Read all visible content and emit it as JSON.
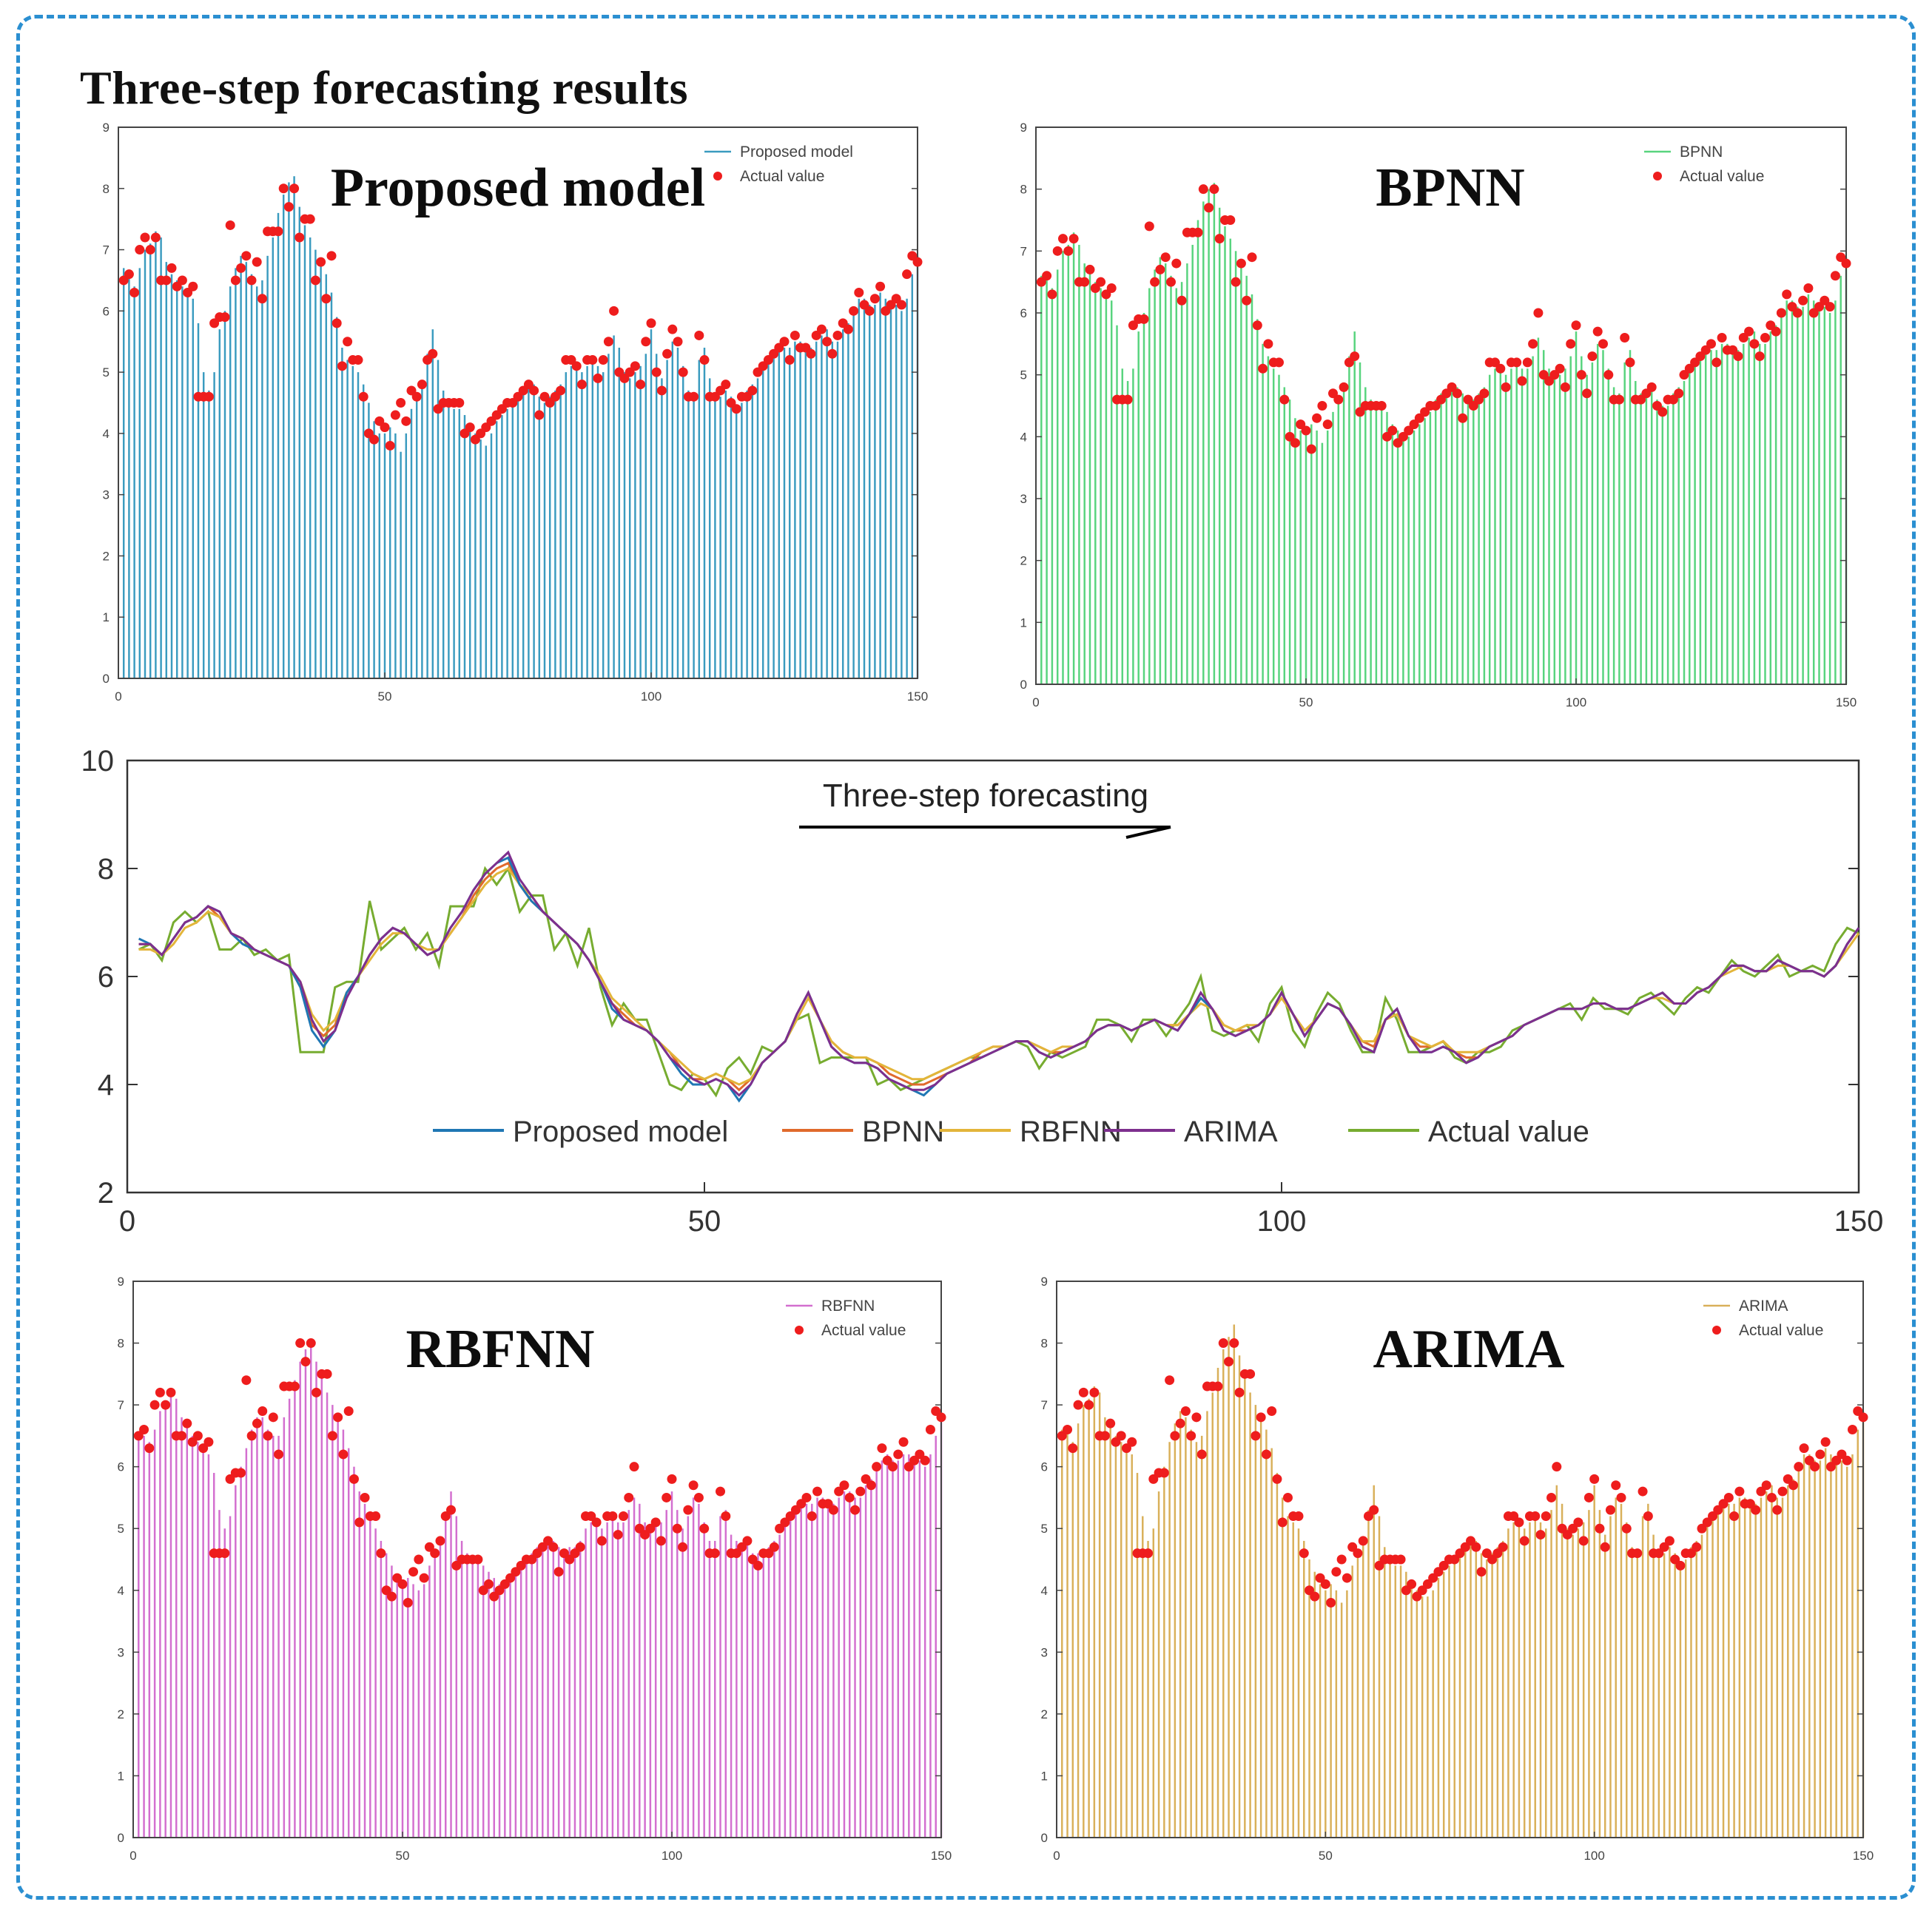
{
  "page": {
    "title": "Three-step forecasting results"
  },
  "colors": {
    "proposed": "#3a9bbf",
    "bpnn_bar": "#58d47e",
    "rbfnn_bar": "#d36fcf",
    "arima_bar": "#d9b05a",
    "actual_marker": "#ee1d1d",
    "line_proposed": "#1f77b4",
    "line_bpnn": "#e06a2c",
    "line_rbfnn": "#e3b53a",
    "line_arima": "#7e2f8e",
    "line_actual": "#77ac30",
    "frame": "#2b8fd1"
  },
  "chart_data": [
    {
      "id": "proposed",
      "type": "bar",
      "overlay_label": "Proposed model",
      "legend": [
        "Proposed model",
        "Actual value"
      ],
      "xlim": [
        0,
        150
      ],
      "ylim": [
        0,
        9
      ],
      "xticks": [
        "0",
        "50",
        "100",
        "150"
      ],
      "yticks": [
        "0",
        "1",
        "2",
        "3",
        "4",
        "5",
        "6",
        "7",
        "8",
        "9"
      ],
      "series": [
        {
          "name": "Proposed model",
          "style": "bars",
          "source": "proposed"
        },
        {
          "name": "Actual value",
          "style": "markers",
          "source": "actual"
        }
      ]
    },
    {
      "id": "bpnn",
      "type": "bar",
      "overlay_label": "BPNN",
      "legend": [
        "BPNN",
        "Actual value"
      ],
      "xlim": [
        0,
        150
      ],
      "ylim": [
        0,
        9
      ],
      "xticks": [
        "0",
        "50",
        "100",
        "150"
      ],
      "yticks": [
        "0",
        "1",
        "2",
        "3",
        "4",
        "5",
        "6",
        "7",
        "8",
        "9"
      ],
      "series": [
        {
          "name": "BPNN",
          "style": "bars",
          "source": "bpnn"
        },
        {
          "name": "Actual value",
          "style": "markers",
          "source": "actual"
        }
      ]
    },
    {
      "id": "lines",
      "type": "line",
      "title": "Three-step forecasting",
      "xlim": [
        0,
        150
      ],
      "ylim": [
        2,
        10
      ],
      "xticks": [
        "0",
        "50",
        "100",
        "150"
      ],
      "yticks": [
        "2",
        "4",
        "6",
        "8",
        "10"
      ],
      "legend": [
        "Proposed model",
        "BPNN",
        "RBFNN",
        "ARIMA",
        "Actual value"
      ],
      "series": [
        {
          "name": "Proposed model",
          "source": "proposed"
        },
        {
          "name": "BPNN",
          "source": "bpnn"
        },
        {
          "name": "RBFNN",
          "source": "rbfnn"
        },
        {
          "name": "ARIMA",
          "source": "arima"
        },
        {
          "name": "Actual value",
          "source": "actual"
        }
      ]
    },
    {
      "id": "rbfnn",
      "type": "bar",
      "overlay_label": "RBFNN",
      "legend": [
        "RBFNN",
        "Actual value"
      ],
      "xlim": [
        0,
        150
      ],
      "ylim": [
        0,
        9
      ],
      "xticks": [
        "0",
        "50",
        "100",
        "150"
      ],
      "yticks": [
        "0",
        "1",
        "2",
        "3",
        "4",
        "5",
        "6",
        "7",
        "8",
        "9"
      ],
      "series": [
        {
          "name": "RBFNN",
          "style": "bars",
          "source": "rbfnn"
        },
        {
          "name": "Actual value",
          "style": "markers",
          "source": "actual"
        }
      ]
    },
    {
      "id": "arima",
      "type": "bar",
      "overlay_label": "ARIMA",
      "legend": [
        "ARIMA",
        "Actual value"
      ],
      "xlim": [
        0,
        150
      ],
      "ylim": [
        0,
        9
      ],
      "xticks": [
        "0",
        "50",
        "100",
        "150"
      ],
      "yticks": [
        "0",
        "1",
        "2",
        "3",
        "4",
        "5",
        "6",
        "7",
        "8",
        "9"
      ],
      "series": [
        {
          "name": "ARIMA",
          "style": "bars",
          "source": "arima"
        },
        {
          "name": "Actual value",
          "style": "markers",
          "source": "actual"
        }
      ]
    }
  ],
  "series_values": {
    "x": [
      1,
      2,
      3,
      4,
      5,
      6,
      7,
      8,
      9,
      10,
      11,
      12,
      13,
      14,
      15,
      16,
      17,
      18,
      19,
      20,
      21,
      22,
      23,
      24,
      25,
      26,
      27,
      28,
      29,
      30,
      31,
      32,
      33,
      34,
      35,
      36,
      37,
      38,
      39,
      40,
      41,
      42,
      43,
      44,
      45,
      46,
      47,
      48,
      49,
      50,
      51,
      52,
      53,
      54,
      55,
      56,
      57,
      58,
      59,
      60,
      61,
      62,
      63,
      64,
      65,
      66,
      67,
      68,
      69,
      70,
      71,
      72,
      73,
      74,
      75,
      76,
      77,
      78,
      79,
      80,
      81,
      82,
      83,
      84,
      85,
      86,
      87,
      88,
      89,
      90,
      91,
      92,
      93,
      94,
      95,
      96,
      97,
      98,
      99,
      100,
      101,
      102,
      103,
      104,
      105,
      106,
      107,
      108,
      109,
      110,
      111,
      112,
      113,
      114,
      115,
      116,
      117,
      118,
      119,
      120,
      121,
      122,
      123,
      124,
      125,
      126,
      127,
      128,
      129,
      130,
      131,
      132,
      133,
      134,
      135,
      136,
      137,
      138,
      139,
      140,
      141,
      142,
      143,
      144,
      145,
      146,
      147,
      148,
      149,
      150
    ],
    "actual": [
      6.5,
      6.6,
      6.3,
      7.0,
      7.2,
      7.0,
      7.2,
      6.5,
      6.5,
      6.7,
      6.4,
      6.5,
      6.3,
      6.4,
      4.6,
      4.6,
      4.6,
      5.8,
      5.9,
      5.9,
      7.4,
      6.5,
      6.7,
      6.9,
      6.5,
      6.8,
      6.2,
      7.3,
      7.3,
      7.3,
      8.0,
      7.7,
      8.0,
      7.2,
      7.5,
      7.5,
      6.5,
      6.8,
      6.2,
      6.9,
      5.8,
      5.1,
      5.5,
      5.2,
      5.2,
      4.6,
      4.0,
      3.9,
      4.2,
      4.1,
      3.8,
      4.3,
      4.5,
      4.2,
      4.7,
      4.6,
      4.8,
      5.2,
      5.3,
      4.4,
      4.5,
      4.5,
      4.5,
      4.5,
      4.0,
      4.1,
      3.9,
      4.0,
      4.1,
      4.2,
      4.3,
      4.4,
      4.5,
      4.5,
      4.6,
      4.7,
      4.8,
      4.7,
      4.3,
      4.6,
      4.5,
      4.6,
      4.7,
      5.2,
      5.2,
      5.1,
      4.8,
      5.2,
      5.2,
      4.9,
      5.2,
      5.5,
      6.0,
      5.0,
      4.9,
      5.0,
      5.1,
      4.8,
      5.5,
      5.8,
      5.0,
      4.7,
      5.3,
      5.7,
      5.5,
      5.0,
      4.6,
      4.6,
      5.6,
      5.2,
      4.6,
      4.6,
      4.7,
      4.8,
      4.5,
      4.4,
      4.6,
      4.6,
      4.7,
      5.0,
      5.1,
      5.2,
      5.3,
      5.4,
      5.5,
      5.2,
      5.6,
      5.4,
      5.4,
      5.3,
      5.6,
      5.7,
      5.5,
      5.3,
      5.6,
      5.8,
      5.7,
      6.0,
      6.3,
      6.1,
      6.0,
      6.2,
      6.4,
      6.0,
      6.1,
      6.2,
      6.1,
      6.6,
      6.9,
      6.8
    ],
    "proposed": [
      6.7,
      6.6,
      6.4,
      6.7,
      7.0,
      7.1,
      7.3,
      7.2,
      6.8,
      6.6,
      6.5,
      6.4,
      6.3,
      6.2,
      5.8,
      5.0,
      4.7,
      5.0,
      5.7,
      6.0,
      6.4,
      6.7,
      6.9,
      6.8,
      6.6,
      6.4,
      6.5,
      6.9,
      7.2,
      7.6,
      7.9,
      8.1,
      8.2,
      7.7,
      7.4,
      7.2,
      7.0,
      6.8,
      6.6,
      6.3,
      5.9,
      5.4,
      5.2,
      5.1,
      5.0,
      4.8,
      4.5,
      4.2,
      4.0,
      4.0,
      4.1,
      4.0,
      3.7,
      4.0,
      4.4,
      4.6,
      4.8,
      5.3,
      5.7,
      5.2,
      4.7,
      4.5,
      4.4,
      4.4,
      4.3,
      4.1,
      4.0,
      3.9,
      3.8,
      4.0,
      4.2,
      4.3,
      4.4,
      4.5,
      4.6,
      4.7,
      4.8,
      4.8,
      4.6,
      4.5,
      4.6,
      4.7,
      4.8,
      5.0,
      5.1,
      5.1,
      5.0,
      5.1,
      5.2,
      5.1,
      5.0,
      5.3,
      5.6,
      5.4,
      5.0,
      4.9,
      5.0,
      5.1,
      5.3,
      5.7,
      5.3,
      4.9,
      5.2,
      5.5,
      5.4,
      5.1,
      4.7,
      4.6,
      5.2,
      5.4,
      4.9,
      4.6,
      4.6,
      4.7,
      4.6,
      4.4,
      4.5,
      4.7,
      4.8,
      4.9,
      5.1,
      5.2,
      5.3,
      5.4,
      5.4,
      5.4,
      5.5,
      5.5,
      5.4,
      5.4,
      5.5,
      5.6,
      5.7,
      5.5,
      5.5,
      5.7,
      5.8,
      6.0,
      6.2,
      6.2,
      6.1,
      6.1,
      6.3,
      6.2,
      6.1,
      6.1,
      6.0,
      6.2,
      6.6,
      6.9
    ],
    "bpnn": [
      6.6,
      6.6,
      6.4,
      6.7,
      7.0,
      7.1,
      7.3,
      7.1,
      6.8,
      6.7,
      6.5,
      6.4,
      6.3,
      6.2,
      5.8,
      5.1,
      4.9,
      5.1,
      5.7,
      6.0,
      6.4,
      6.7,
      6.9,
      6.8,
      6.6,
      6.4,
      6.5,
      6.8,
      7.1,
      7.5,
      7.8,
      8.0,
      8.1,
      7.7,
      7.4,
      7.2,
      7.0,
      6.8,
      6.6,
      6.3,
      5.9,
      5.5,
      5.3,
      5.1,
      5.0,
      4.8,
      4.6,
      4.3,
      4.1,
      4.1,
      4.2,
      4.1,
      3.9,
      4.1,
      4.4,
      4.6,
      4.8,
      5.3,
      5.7,
      5.2,
      4.8,
      4.6,
      4.5,
      4.5,
      4.4,
      4.2,
      4.1,
      4.0,
      4.0,
      4.1,
      4.2,
      4.3,
      4.4,
      4.6,
      4.7,
      4.7,
      4.8,
      4.8,
      4.7,
      4.6,
      4.6,
      4.7,
      4.8,
      5.0,
      5.1,
      5.1,
      5.0,
      5.1,
      5.2,
      5.1,
      5.1,
      5.3,
      5.6,
      5.4,
      5.1,
      5.0,
      5.0,
      5.1,
      5.3,
      5.7,
      5.3,
      5.0,
      5.2,
      5.5,
      5.4,
      5.1,
      4.8,
      4.7,
      5.2,
      5.4,
      4.9,
      4.7,
      4.7,
      4.8,
      4.6,
      4.5,
      4.5,
      4.7,
      4.8,
      4.9,
      5.1,
      5.2,
      5.3,
      5.4,
      5.4,
      5.4,
      5.5,
      5.5,
      5.4,
      5.4,
      5.5,
      5.6,
      5.7,
      5.5,
      5.5,
      5.7,
      5.8,
      6.0,
      6.2,
      6.2,
      6.1,
      6.1,
      6.3,
      6.2,
      6.1,
      6.1,
      6.0,
      6.2,
      6.6,
      6.9
    ],
    "rbfnn": [
      6.5,
      6.5,
      6.4,
      6.6,
      6.9,
      7.0,
      7.2,
      7.1,
      6.8,
      6.7,
      6.5,
      6.4,
      6.3,
      6.2,
      5.9,
      5.3,
      5.0,
      5.2,
      5.7,
      6.0,
      6.3,
      6.6,
      6.8,
      6.8,
      6.6,
      6.5,
      6.5,
      6.8,
      7.1,
      7.4,
      7.7,
      7.9,
      8.0,
      7.7,
      7.5,
      7.2,
      7.0,
      6.8,
      6.6,
      6.3,
      6.0,
      5.6,
      5.4,
      5.2,
      5.0,
      4.8,
      4.6,
      4.4,
      4.2,
      4.1,
      4.2,
      4.1,
      4.0,
      4.1,
      4.4,
      4.6,
      4.8,
      5.2,
      5.6,
      5.2,
      4.8,
      4.6,
      4.5,
      4.5,
      4.4,
      4.3,
      4.2,
      4.1,
      4.1,
      4.2,
      4.3,
      4.4,
      4.5,
      4.6,
      4.7,
      4.7,
      4.8,
      4.8,
      4.7,
      4.6,
      4.7,
      4.7,
      4.8,
      5.0,
      5.1,
      5.1,
      5.0,
      5.1,
      5.2,
      5.1,
      5.1,
      5.3,
      5.5,
      5.4,
      5.1,
      5.0,
      5.1,
      5.1,
      5.3,
      5.6,
      5.3,
      5.0,
      5.2,
      5.5,
      5.4,
      5.1,
      4.8,
      4.8,
      5.2,
      5.3,
      4.9,
      4.8,
      4.7,
      4.8,
      4.6,
      4.6,
      4.6,
      4.7,
      4.8,
      4.9,
      5.1,
      5.2,
      5.3,
      5.4,
      5.4,
      5.4,
      5.5,
      5.5,
      5.4,
      5.4,
      5.5,
      5.6,
      5.6,
      5.5,
      5.5,
      5.7,
      5.8,
      6.0,
      6.1,
      6.2,
      6.1,
      6.1,
      6.2,
      6.2,
      6.1,
      6.1,
      6.0,
      6.2,
      6.5,
      6.8
    ],
    "arima": [
      6.6,
      6.6,
      6.4,
      6.7,
      7.0,
      7.1,
      7.3,
      7.2,
      6.8,
      6.7,
      6.5,
      6.4,
      6.3,
      6.2,
      5.9,
      5.2,
      4.8,
      5.0,
      5.6,
      6.0,
      6.4,
      6.7,
      6.9,
      6.8,
      6.6,
      6.4,
      6.5,
      6.9,
      7.2,
      7.6,
      7.9,
      8.1,
      8.3,
      7.8,
      7.5,
      7.2,
      7.0,
      6.8,
      6.6,
      6.3,
      5.9,
      5.5,
      5.2,
      5.1,
      5.0,
      4.8,
      4.5,
      4.3,
      4.1,
      4.0,
      4.1,
      4.0,
      3.8,
      4.0,
      4.4,
      4.6,
      4.8,
      5.3,
      5.7,
      5.2,
      4.7,
      4.5,
      4.4,
      4.4,
      4.3,
      4.1,
      4.0,
      3.9,
      3.9,
      4.0,
      4.2,
      4.3,
      4.4,
      4.5,
      4.6,
      4.7,
      4.8,
      4.8,
      4.6,
      4.5,
      4.6,
      4.7,
      4.8,
      5.0,
      5.1,
      5.1,
      5.0,
      5.1,
      5.2,
      5.1,
      5.0,
      5.3,
      5.7,
      5.4,
      5.0,
      4.9,
      5.0,
      5.1,
      5.3,
      5.7,
      5.3,
      4.9,
      5.2,
      5.5,
      5.4,
      5.1,
      4.7,
      4.6,
      5.2,
      5.4,
      4.9,
      4.6,
      4.6,
      4.7,
      4.6,
      4.4,
      4.5,
      4.7,
      4.8,
      4.9,
      5.1,
      5.2,
      5.3,
      5.4,
      5.4,
      5.4,
      5.5,
      5.5,
      5.4,
      5.4,
      5.5,
      5.6,
      5.7,
      5.5,
      5.5,
      5.7,
      5.8,
      6.0,
      6.2,
      6.2,
      6.1,
      6.1,
      6.3,
      6.2,
      6.1,
      6.1,
      6.0,
      6.2,
      6.6,
      6.9
    ]
  }
}
